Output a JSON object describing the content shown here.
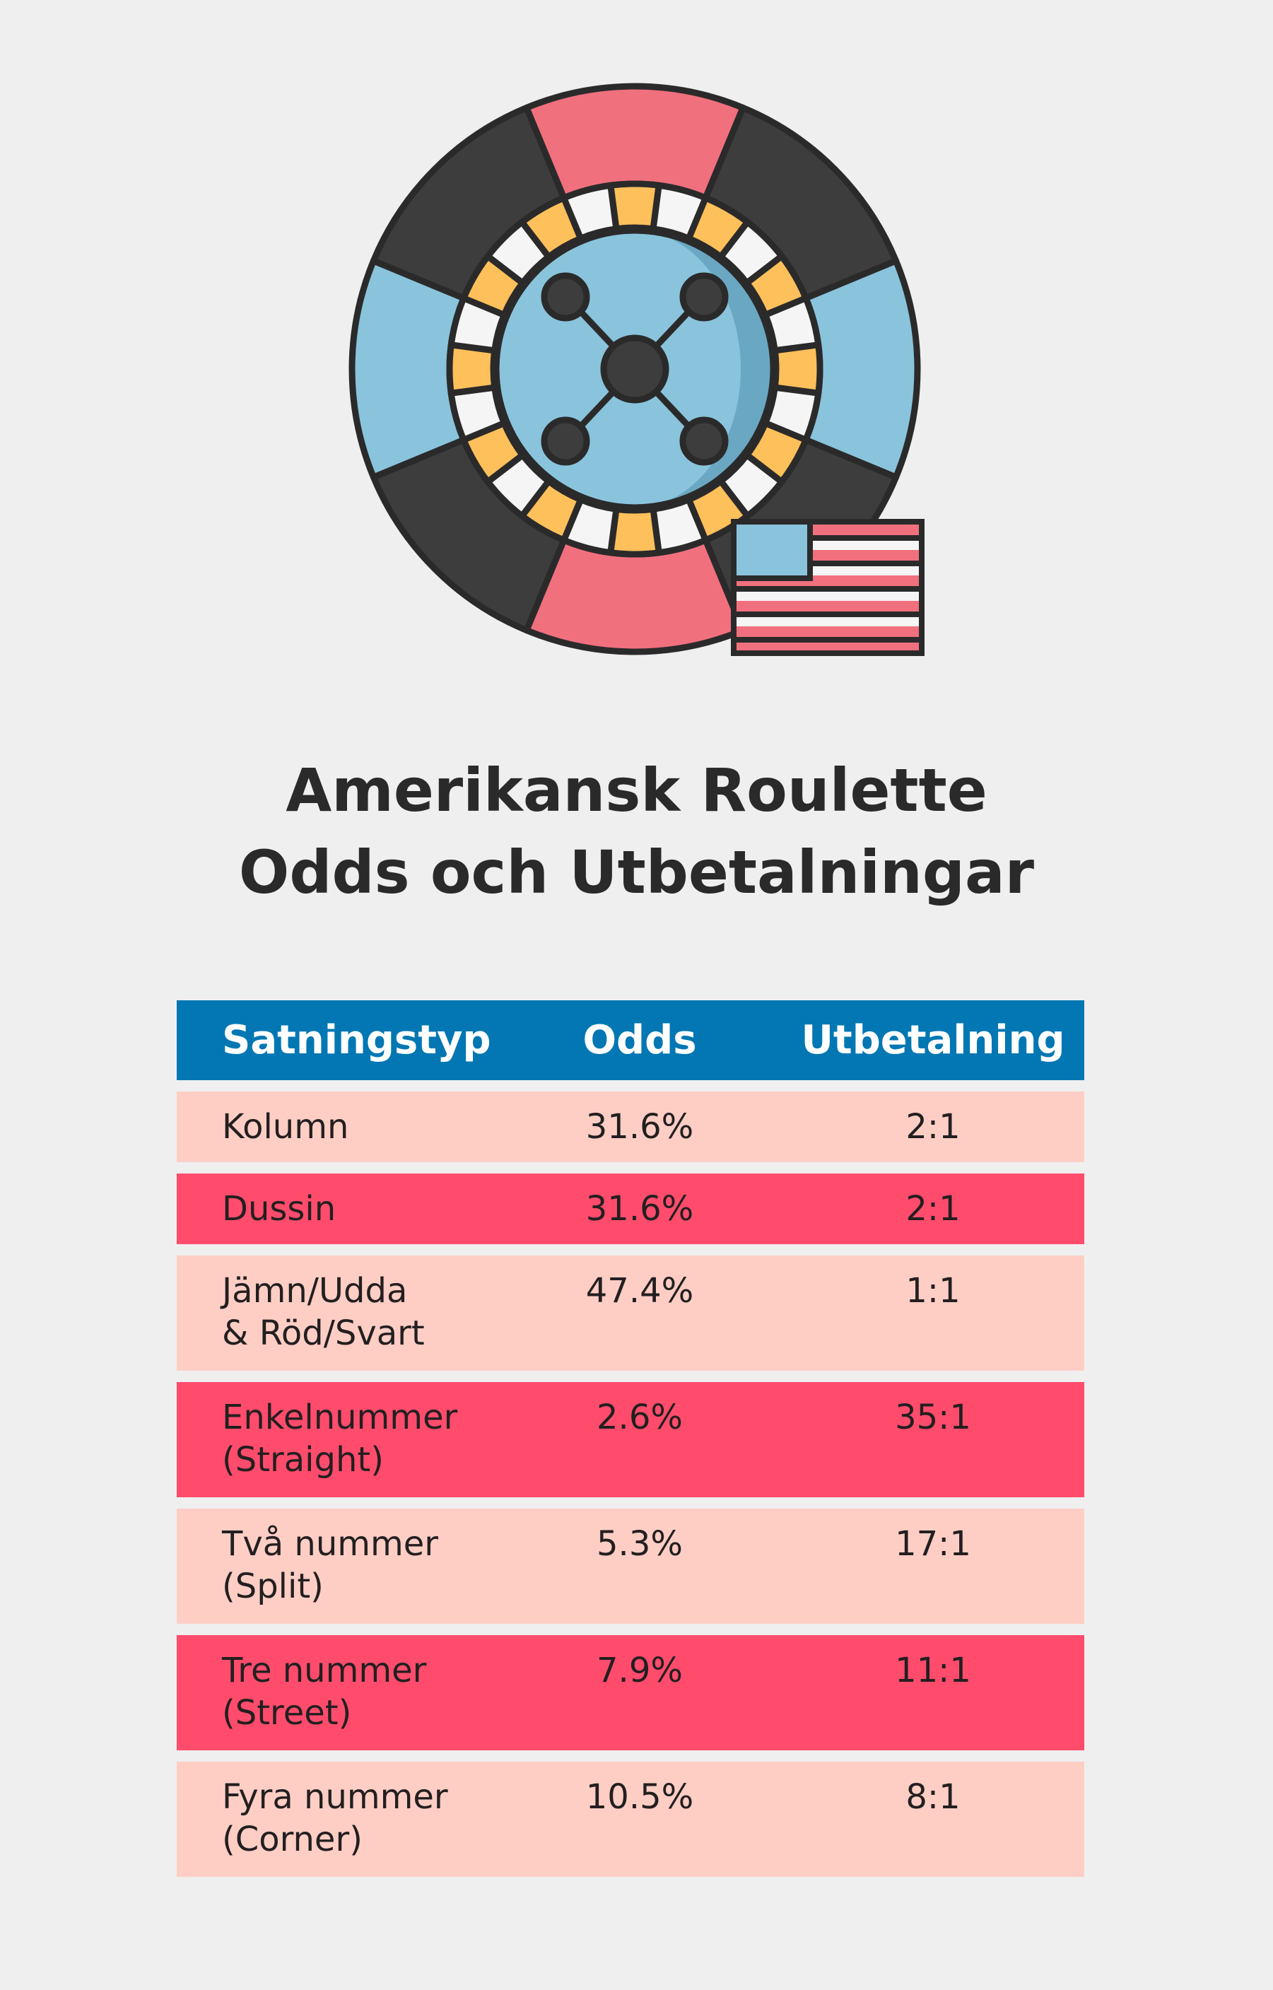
{
  "title": {
    "line1": "Amerikansk Roulette",
    "line2": "Odds och Utbetalningar"
  },
  "illustration": {
    "icons": [
      "roulette-wheel-icon",
      "us-flag-icon"
    ],
    "colors": {
      "outline": "#2b2a2b",
      "dark_segment": "#3d3d3d",
      "red_segment": "#f1707e",
      "blue_segment": "#89c4dc",
      "yellow_pocket": "#fdc05a",
      "white_pocket": "#f5f5f5",
      "blue_shadow": "#6aa7c2"
    }
  },
  "table": {
    "headers": [
      "Satningstyp",
      "Odds",
      "Utbetalning"
    ],
    "header_color": "#0277b3",
    "row_colors": [
      "#fecec5",
      "#ff4c6c"
    ],
    "rows": [
      {
        "type_lines": [
          "Kolumn"
        ],
        "odds": "31.6%",
        "payout": "2:1"
      },
      {
        "type_lines": [
          "Dussin"
        ],
        "odds": "31.6%",
        "payout": "2:1"
      },
      {
        "type_lines": [
          "Jämn/Udda",
          "& Röd/Svart"
        ],
        "odds": "47.4%",
        "payout": "1:1"
      },
      {
        "type_lines": [
          "Enkelnummer",
          "(Straight)"
        ],
        "odds": "2.6%",
        "payout": "35:1"
      },
      {
        "type_lines": [
          "Två nummer",
          "(Split)"
        ],
        "odds": "5.3%",
        "payout": "17:1"
      },
      {
        "type_lines": [
          "Tre nummer",
          "(Street)"
        ],
        "odds": "7.9%",
        "payout": "11:1"
      },
      {
        "type_lines": [
          "Fyra nummer",
          "(Corner)"
        ],
        "odds": "10.5%",
        "payout": "8:1"
      }
    ]
  }
}
